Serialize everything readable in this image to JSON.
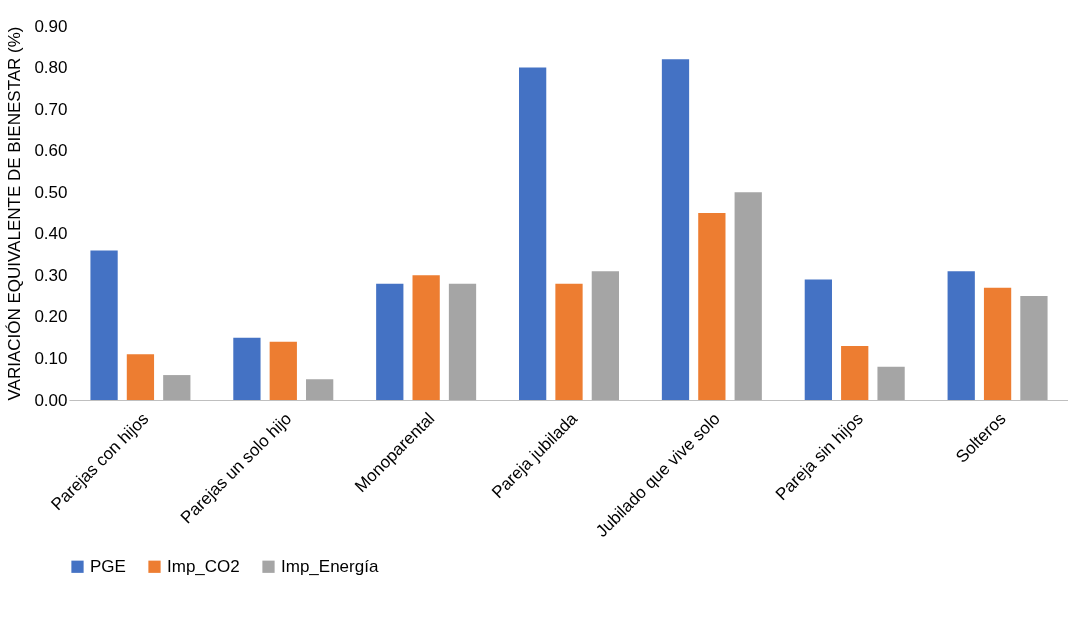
{
  "chart_data": {
    "type": "bar",
    "ylabel": "VARIACIÓN EQUIVALENTE DE BIENESTAR (%)",
    "categories": [
      "Parejas con hijos",
      "Parejas un solo hijo",
      "Monoparental",
      "Pareja jubilada",
      "Jubilado que vive solo",
      "Pareja sin hijos",
      "Solteros"
    ],
    "series": [
      {
        "name": "PGE",
        "color": "#4472c4",
        "values": [
          0.36,
          0.15,
          0.28,
          0.8,
          0.82,
          0.29,
          0.31
        ]
      },
      {
        "name": "Imp_CO2",
        "color": "#ed7d31",
        "values": [
          0.11,
          0.14,
          0.3,
          0.28,
          0.45,
          0.13,
          0.27
        ]
      },
      {
        "name": "Imp_Energía",
        "color": "#a5a5a5",
        "values": [
          0.06,
          0.05,
          0.28,
          0.31,
          0.5,
          0.08,
          0.25
        ]
      }
    ],
    "ylim": [
      0,
      0.9
    ],
    "yticks": [
      {
        "value": 0,
        "label": "0.00"
      },
      {
        "value": 0.1,
        "label": "0.10"
      },
      {
        "value": 0.2,
        "label": "0.20"
      },
      {
        "value": 0.3,
        "label": "0.30"
      },
      {
        "value": 0.4,
        "label": "0.40"
      },
      {
        "value": 0.5,
        "label": "0.50"
      },
      {
        "value": 0.6,
        "label": "0.60"
      },
      {
        "value": 0.7,
        "label": "0.70"
      },
      {
        "value": 0.8,
        "label": "0.80"
      },
      {
        "value": 0.9,
        "label": "0.90"
      }
    ],
    "grid": false,
    "legend": "bottom"
  }
}
